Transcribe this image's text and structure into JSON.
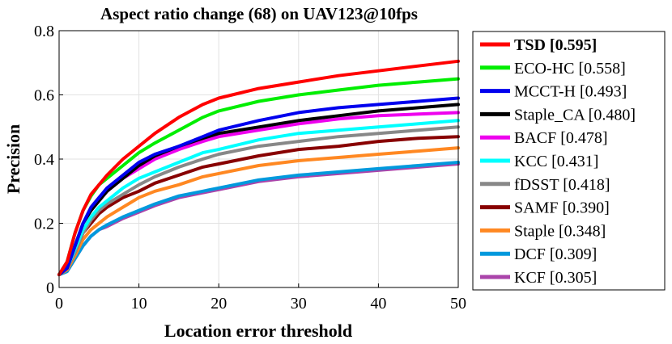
{
  "chart_data": {
    "type": "line",
    "title": "Aspect ratio change (68) on UAV123@10fps",
    "xlabel": "Location error threshold",
    "ylabel": "Precision",
    "xlim": [
      0,
      50
    ],
    "ylim": [
      0,
      0.8
    ],
    "x_ticks": [
      "0",
      "10",
      "20",
      "30",
      "40",
      "50"
    ],
    "y_ticks": [
      "0",
      "0.2",
      "0.4",
      "0.6",
      "0.8"
    ],
    "grid": true,
    "legend_position": "outside-right",
    "x": [
      0,
      1,
      2,
      3,
      4,
      5,
      6,
      8,
      10,
      12,
      15,
      18,
      20,
      25,
      30,
      35,
      40,
      45,
      50
    ],
    "series": [
      {
        "name": "TSD [0.595]",
        "color": "#ff0000",
        "bold": true,
        "values": [
          0.04,
          0.08,
          0.17,
          0.24,
          0.29,
          0.32,
          0.35,
          0.4,
          0.44,
          0.48,
          0.53,
          0.57,
          0.59,
          0.62,
          0.64,
          0.66,
          0.675,
          0.69,
          0.705
        ]
      },
      {
        "name": "ECO-HC [0.558]",
        "color": "#00ee00",
        "bold": false,
        "values": [
          0.04,
          0.08,
          0.17,
          0.24,
          0.285,
          0.32,
          0.34,
          0.38,
          0.42,
          0.45,
          0.49,
          0.53,
          0.55,
          0.58,
          0.6,
          0.615,
          0.63,
          0.64,
          0.65
        ]
      },
      {
        "name": "MCCT-H [0.493]",
        "color": "#0000ee",
        "bold": false,
        "values": [
          0.04,
          0.06,
          0.13,
          0.2,
          0.25,
          0.28,
          0.31,
          0.35,
          0.39,
          0.415,
          0.44,
          0.47,
          0.49,
          0.52,
          0.545,
          0.56,
          0.57,
          0.58,
          0.59
        ]
      },
      {
        "name": "Staple_CA [0.480]",
        "color": "#000000",
        "bold": false,
        "values": [
          0.04,
          0.06,
          0.13,
          0.2,
          0.24,
          0.27,
          0.3,
          0.34,
          0.38,
          0.41,
          0.44,
          0.465,
          0.48,
          0.5,
          0.52,
          0.535,
          0.55,
          0.56,
          0.57
        ]
      },
      {
        "name": "BACF [0.478]",
        "color": "#ee00ee",
        "bold": false,
        "values": [
          0.04,
          0.06,
          0.13,
          0.2,
          0.24,
          0.27,
          0.3,
          0.34,
          0.37,
          0.4,
          0.43,
          0.455,
          0.47,
          0.49,
          0.51,
          0.525,
          0.535,
          0.54,
          0.545
        ]
      },
      {
        "name": "KCC [0.431]",
        "color": "#00ffff",
        "bold": false,
        "values": [
          0.04,
          0.06,
          0.12,
          0.18,
          0.22,
          0.25,
          0.27,
          0.31,
          0.34,
          0.36,
          0.39,
          0.42,
          0.43,
          0.46,
          0.48,
          0.49,
          0.5,
          0.51,
          0.52
        ]
      },
      {
        "name": "fDSST [0.418]",
        "color": "#888888",
        "bold": false,
        "values": [
          0.04,
          0.06,
          0.11,
          0.17,
          0.21,
          0.24,
          0.26,
          0.29,
          0.32,
          0.345,
          0.375,
          0.4,
          0.415,
          0.44,
          0.455,
          0.47,
          0.48,
          0.49,
          0.5
        ]
      },
      {
        "name": "SAMF [0.390]",
        "color": "#880000",
        "bold": false,
        "values": [
          0.04,
          0.06,
          0.11,
          0.17,
          0.2,
          0.23,
          0.25,
          0.28,
          0.3,
          0.325,
          0.35,
          0.375,
          0.385,
          0.41,
          0.43,
          0.44,
          0.455,
          0.465,
          0.47
        ]
      },
      {
        "name": "Staple [0.348]",
        "color": "#ff8822",
        "bold": false,
        "values": [
          0.04,
          0.055,
          0.1,
          0.15,
          0.18,
          0.2,
          0.22,
          0.25,
          0.28,
          0.3,
          0.32,
          0.345,
          0.355,
          0.38,
          0.395,
          0.405,
          0.415,
          0.425,
          0.435
        ]
      },
      {
        "name": "DCF [0.309]",
        "color": "#0099dd",
        "bold": false,
        "values": [
          0.04,
          0.05,
          0.09,
          0.13,
          0.16,
          0.18,
          0.195,
          0.22,
          0.24,
          0.26,
          0.285,
          0.3,
          0.31,
          0.335,
          0.35,
          0.36,
          0.37,
          0.38,
          0.39
        ]
      },
      {
        "name": "KCF [0.305]",
        "color": "#aa44aa",
        "bold": false,
        "values": [
          0.04,
          0.05,
          0.09,
          0.13,
          0.16,
          0.18,
          0.19,
          0.215,
          0.235,
          0.255,
          0.28,
          0.295,
          0.305,
          0.33,
          0.345,
          0.355,
          0.365,
          0.375,
          0.385
        ]
      }
    ]
  }
}
